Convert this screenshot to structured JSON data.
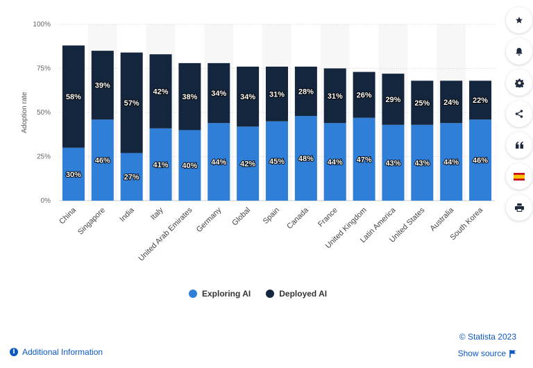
{
  "chart_data": {
    "type": "bar",
    "stacked": true,
    "categories": [
      "China",
      "Singapore",
      "India",
      "Italy",
      "United Arab Emirates",
      "Germany",
      "Global",
      "Spain",
      "Canada",
      "France",
      "United Kingdom",
      "Latin America",
      "United States",
      "Australia",
      "South Korea"
    ],
    "series": [
      {
        "name": "Exploring AI",
        "color": "#2f7ed8",
        "values": [
          30,
          46,
          27,
          41,
          40,
          44,
          42,
          45,
          48,
          44,
          47,
          43,
          43,
          44,
          46
        ]
      },
      {
        "name": "Deployed AI",
        "color": "#14253e",
        "values": [
          58,
          39,
          57,
          42,
          38,
          34,
          34,
          31,
          28,
          31,
          26,
          29,
          25,
          24,
          22
        ]
      }
    ],
    "ylabel": "Adoption rate",
    "ylim": [
      0,
      100
    ],
    "yticks": [
      "0%",
      "25%",
      "50%",
      "75%",
      "100%"
    ],
    "data_label_suffix": "%",
    "grid": true,
    "legend_position": "bottom"
  },
  "footer": {
    "copyright": "© Statista 2023",
    "show_source": "Show source",
    "additional_info": "Additional Information"
  },
  "toolbar": {
    "buttons": [
      "star-icon",
      "bell-icon",
      "gear-icon",
      "share-icon",
      "quote-icon",
      "flag-spain-icon",
      "print-icon"
    ]
  }
}
